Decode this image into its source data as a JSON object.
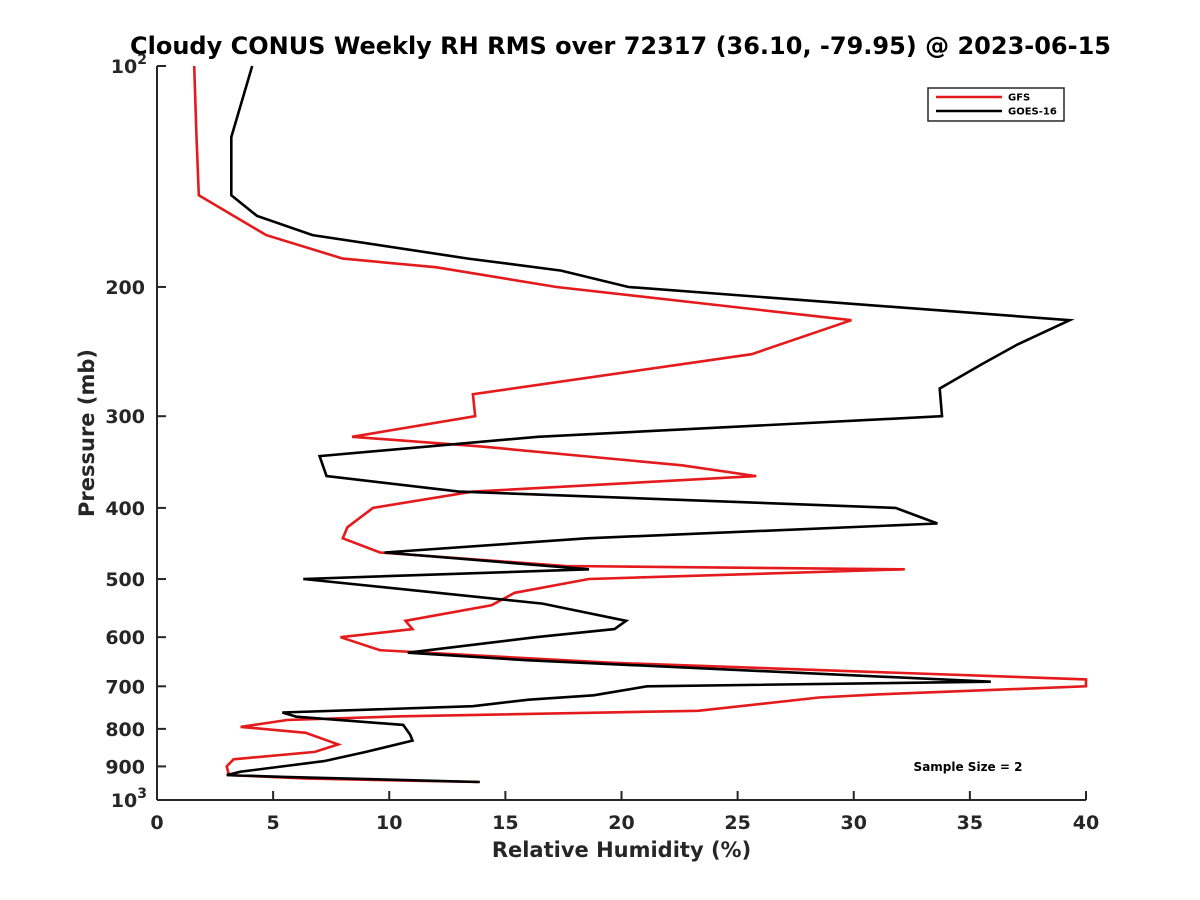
{
  "chart_data": {
    "type": "line",
    "title": "Cloudy CONUS Weekly RH RMS over 72317 (36.10, -79.95) @ 2023-06-15",
    "xlabel": "Relative Humidity (%)",
    "ylabel": "Pressure (mb)",
    "xlim": [
      0,
      40
    ],
    "ylim": [
      100,
      1000
    ],
    "y_scale": "log",
    "y_reversed": true,
    "x_ticks": [
      0,
      5,
      10,
      15,
      20,
      25,
      30,
      35,
      40
    ],
    "y_ticks": [
      {
        "value": 100,
        "label": "10",
        "exp": "2"
      },
      {
        "value": 200,
        "label": "200",
        "exp": ""
      },
      {
        "value": 300,
        "label": "300",
        "exp": ""
      },
      {
        "value": 400,
        "label": "400",
        "exp": ""
      },
      {
        "value": 500,
        "label": "500",
        "exp": ""
      },
      {
        "value": 600,
        "label": "600",
        "exp": ""
      },
      {
        "value": 700,
        "label": "700",
        "exp": ""
      },
      {
        "value": 800,
        "label": "800",
        "exp": ""
      },
      {
        "value": 900,
        "label": "900",
        "exp": ""
      },
      {
        "value": 1000,
        "label": "10",
        "exp": "3"
      }
    ],
    "grid": false,
    "legend_position": "top-right",
    "annotation": "Sample Size = 2",
    "series": [
      {
        "name": "GFS",
        "color": "#e41a1c",
        "points": [
          [
            1.6,
            100
          ],
          [
            1.7,
            125
          ],
          [
            1.8,
            150
          ],
          [
            4.7,
            170
          ],
          [
            8.0,
            183
          ],
          [
            12.0,
            188
          ],
          [
            17.2,
            200
          ],
          [
            29.9,
            222
          ],
          [
            25.6,
            247
          ],
          [
            13.6,
            280
          ],
          [
            13.7,
            300
          ],
          [
            8.4,
            320
          ],
          [
            14.0,
            330
          ],
          [
            22.6,
            350
          ],
          [
            25.8,
            362
          ],
          [
            13.6,
            380
          ],
          [
            9.3,
            400
          ],
          [
            8.2,
            425
          ],
          [
            8.0,
            440
          ],
          [
            9.6,
            460
          ],
          [
            17.6,
            480
          ],
          [
            32.2,
            485
          ],
          [
            18.6,
            500
          ],
          [
            15.4,
            522
          ],
          [
            14.4,
            543
          ],
          [
            10.7,
            570
          ],
          [
            11.0,
            585
          ],
          [
            7.9,
            600
          ],
          [
            9.6,
            625
          ],
          [
            19.5,
            650
          ],
          [
            40.0,
            685
          ],
          [
            40.0,
            700
          ],
          [
            31.0,
            718
          ],
          [
            28.5,
            725
          ],
          [
            23.3,
            756
          ],
          [
            10.5,
            769
          ],
          [
            5.6,
            778
          ],
          [
            3.6,
            795
          ],
          [
            6.4,
            810
          ],
          [
            7.8,
            840
          ],
          [
            6.8,
            860
          ],
          [
            3.3,
            880
          ],
          [
            3.0,
            900
          ],
          [
            3.1,
            925
          ],
          [
            6.5,
            935
          ],
          [
            13.8,
            945
          ]
        ]
      },
      {
        "name": "GOES-16",
        "color": "#000000",
        "points": [
          [
            4.1,
            100
          ],
          [
            3.2,
            125
          ],
          [
            3.2,
            150
          ],
          [
            4.3,
            160
          ],
          [
            6.7,
            170
          ],
          [
            13.4,
            183
          ],
          [
            17.4,
            190
          ],
          [
            20.3,
            200
          ],
          [
            39.3,
            222
          ],
          [
            37.0,
            240
          ],
          [
            35.5,
            255
          ],
          [
            33.7,
            275
          ],
          [
            33.8,
            300
          ],
          [
            16.4,
            320
          ],
          [
            7.0,
            340
          ],
          [
            7.3,
            362
          ],
          [
            13.0,
            380
          ],
          [
            31.8,
            400
          ],
          [
            33.6,
            420
          ],
          [
            18.5,
            440
          ],
          [
            9.8,
            460
          ],
          [
            18.6,
            485
          ],
          [
            6.3,
            500
          ],
          [
            16.6,
            540
          ],
          [
            20.2,
            570
          ],
          [
            19.7,
            585
          ],
          [
            16.3,
            600
          ],
          [
            10.8,
            630
          ],
          [
            15.9,
            645
          ],
          [
            35.9,
            690
          ],
          [
            21.1,
            700
          ],
          [
            18.8,
            720
          ],
          [
            16.0,
            730
          ],
          [
            13.6,
            745
          ],
          [
            5.4,
            760
          ],
          [
            6.0,
            770
          ],
          [
            10.6,
            790
          ],
          [
            10.9,
            815
          ],
          [
            11.0,
            830
          ],
          [
            9.0,
            860
          ],
          [
            7.2,
            885
          ],
          [
            3.6,
            915
          ],
          [
            3.0,
            925
          ],
          [
            5.5,
            930
          ],
          [
            13.9,
            945
          ]
        ]
      }
    ]
  }
}
